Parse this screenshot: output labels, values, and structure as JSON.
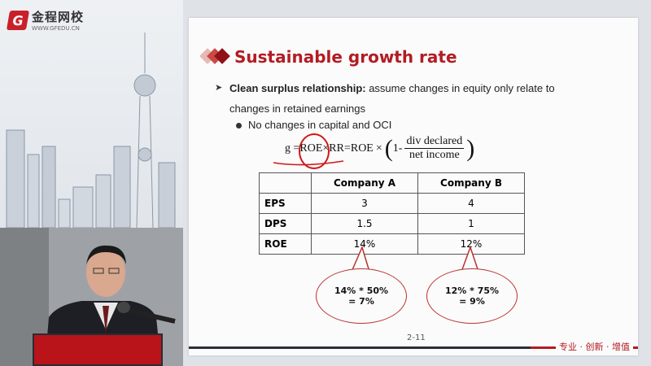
{
  "brand": {
    "name": "金程网校",
    "url": "WWW.GFEDU.CN",
    "logo_letter": "G"
  },
  "slide": {
    "title": "Sustainable growth rate",
    "bullet1_bold": "Clean surplus relationship:",
    "bullet1_rest": " assume changes in equity only relate to",
    "bullet1_line2": "changes in retained earnings",
    "bullet2": "No changes in capital and OCI",
    "formula": {
      "lhs": "g =ROE×RR=ROE",
      "times": "×",
      "one_minus": "1-",
      "numerator": "div declared",
      "denominator": "net income"
    },
    "table": {
      "headers": [
        "",
        "Company A",
        "Company B"
      ],
      "rows": [
        [
          "EPS",
          "3",
          "4"
        ],
        [
          "DPS",
          "1.5",
          "1"
        ],
        [
          "ROE",
          "14%",
          "12%"
        ]
      ]
    },
    "callouts": [
      {
        "line1": "14% * 50%",
        "line2": "= 7%"
      },
      {
        "line1": "12% * 75%",
        "line2": "= 9%"
      }
    ],
    "page_number": "2-11",
    "tagline": "专业 · 创新 · 增值"
  },
  "colors": {
    "accent": "#b31c23",
    "annotation": "#d01818"
  }
}
